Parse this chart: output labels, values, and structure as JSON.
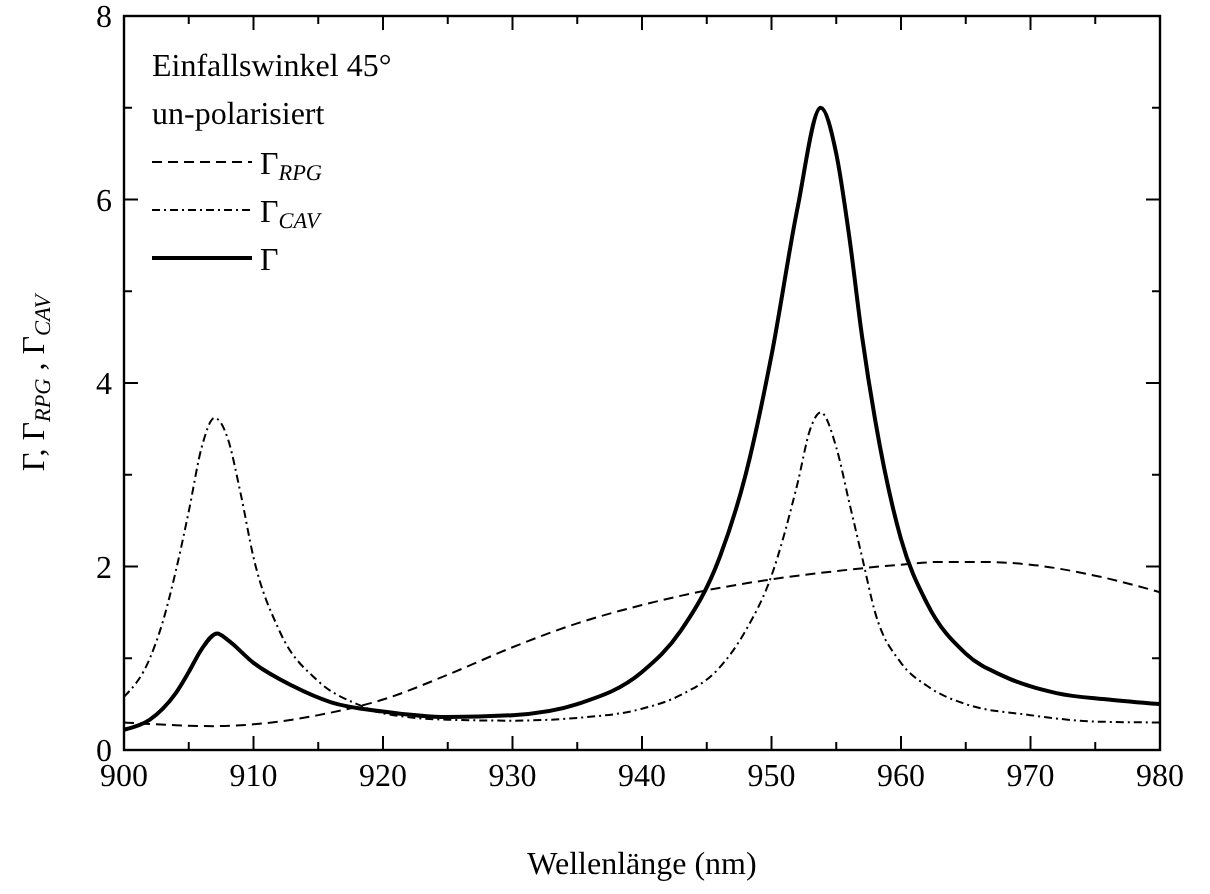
{
  "chart_data": {
    "type": "line",
    "xlabel": "Wellenlänge (nm)",
    "ylabel": "Γ, Γ$_{RPG}$ , Γ$_{CAV}$",
    "annotations": [
      "Einfallswinkel 45°",
      "un-polarisiert"
    ],
    "xlim": [
      900,
      980
    ],
    "ylim": [
      0,
      8
    ],
    "xticks": [
      900,
      {
        "value": 905,
        "label": null
      },
      910,
      {
        "value": 915,
        "label": null
      },
      920,
      {
        "value": 925,
        "label": null
      },
      930,
      {
        "value": 935,
        "label": null
      },
      940,
      {
        "value": 945,
        "label": null
      },
      950,
      {
        "value": 955,
        "label": null
      },
      960,
      {
        "value": 965,
        "label": null
      },
      970,
      {
        "value": 975,
        "label": null
      },
      980
    ],
    "yticks": [
      0,
      {
        "value": 1,
        "label": null
      },
      2,
      {
        "value": 3,
        "label": null
      },
      4,
      {
        "value": 5,
        "label": null
      },
      6,
      {
        "value": 7,
        "label": null
      },
      8
    ],
    "grid": false,
    "legend": "top left",
    "series": [
      {
        "name": "Γ$_{RPG}$",
        "color": "#000000",
        "line_style": "dashed",
        "x": [
          900,
          904,
          907,
          910,
          915,
          920,
          925,
          930,
          935,
          940,
          945,
          950,
          955,
          960,
          963,
          966,
          970,
          975,
          980
        ],
        "values": [
          0.3,
          0.27,
          0.26,
          0.28,
          0.38,
          0.55,
          0.82,
          1.12,
          1.38,
          1.58,
          1.74,
          1.86,
          1.95,
          2.02,
          2.05,
          2.05,
          2.02,
          1.9,
          1.72
        ]
      },
      {
        "name": "Γ$_{CAV}$",
        "color": "#000000",
        "line_style": "dashdot",
        "x": [
          900,
          902,
          903,
          904,
          905,
          906,
          907,
          908,
          909,
          910,
          912,
          915,
          918,
          920,
          925,
          930,
          935,
          940,
          943,
          946,
          948,
          950,
          952,
          953,
          953.8,
          955,
          956,
          957,
          958,
          960,
          962,
          965,
          970,
          975,
          980
        ],
        "values": [
          0.58,
          1.0,
          1.4,
          1.95,
          2.6,
          3.3,
          3.62,
          3.4,
          2.8,
          2.1,
          1.3,
          0.75,
          0.5,
          0.4,
          0.33,
          0.32,
          0.35,
          0.45,
          0.6,
          0.9,
          1.3,
          1.9,
          2.9,
          3.5,
          3.68,
          3.3,
          2.7,
          2.1,
          1.5,
          0.95,
          0.7,
          0.5,
          0.38,
          0.31,
          0.3
        ]
      },
      {
        "name": "Γ",
        "color": "#000000",
        "line_style": "solid",
        "x": [
          900,
          902,
          903,
          904,
          905,
          906,
          907.2,
          908,
          910,
          913,
          916,
          920,
          925,
          930,
          935,
          940,
          943,
          946,
          948,
          950,
          952,
          953.8,
          955,
          956,
          957,
          958,
          960,
          962,
          965,
          968,
          972,
          976,
          980
        ],
        "values": [
          0.22,
          0.33,
          0.45,
          0.62,
          0.85,
          1.1,
          1.27,
          1.2,
          0.95,
          0.7,
          0.52,
          0.42,
          0.36,
          0.38,
          0.5,
          0.85,
          1.3,
          2.1,
          3.0,
          4.3,
          5.9,
          7.0,
          6.5,
          5.6,
          4.5,
          3.6,
          2.3,
          1.6,
          1.05,
          0.8,
          0.62,
          0.55,
          0.5
        ]
      }
    ]
  }
}
